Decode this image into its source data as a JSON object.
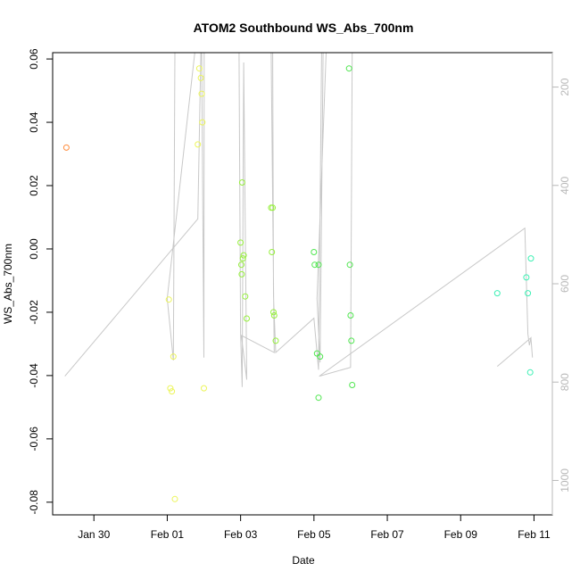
{
  "chart_data": {
    "type": "scatter",
    "title": "ATOM2 Southbound WS_Abs_700nm",
    "xlabel": "Date",
    "ylabel": "WS_Abs_700nm",
    "x_tick_labels": [
      "Jan 30",
      "Feb 01",
      "Feb 03",
      "Feb 05",
      "Feb 07",
      "Feb 09",
      "Feb 11"
    ],
    "x_tick_dates": [
      "2025-01-30",
      "2025-02-01",
      "2025-02-03",
      "2025-02-05",
      "2025-02-07",
      "2025-02-09",
      "2025-02-11"
    ],
    "xlim": [
      "2025-01-28T21:00",
      "2025-02-11T12:00"
    ],
    "y_tick_labels": [
      "-0.08",
      "-0.06",
      "-0.04",
      "-0.02",
      "0.00",
      "0.02",
      "0.04",
      "0.06"
    ],
    "ylim": [
      -0.084,
      0.062
    ],
    "y2_tick_labels": [
      "200",
      "400",
      "600",
      "800",
      "1000"
    ],
    "y2lim": [
      1070,
      130
    ],
    "grid": false,
    "colors": {
      "track": "#c8c8c8",
      "right_axis": "#b8b8b8",
      "axis": "#000000"
    },
    "series": [
      {
        "color": "#ff8c3c",
        "points": [
          [
            "2025-01-29T06:00",
            0.032
          ]
        ]
      },
      {
        "color": "#ecf55a",
        "points": [
          [
            "2025-02-01T01:00",
            -0.016
          ],
          [
            "2025-02-01T02:00",
            -0.044
          ],
          [
            "2025-02-01T03:00",
            -0.045
          ],
          [
            "2025-02-01T04:00",
            -0.034
          ],
          [
            "2025-02-01T05:00",
            -0.079
          ],
          [
            "2025-02-01T20:00",
            0.033
          ],
          [
            "2025-02-01T21:00",
            0.057
          ],
          [
            "2025-02-01T22:00",
            0.054
          ],
          [
            "2025-02-01T22:30",
            0.049
          ],
          [
            "2025-02-01T23:00",
            0.04
          ],
          [
            "2025-02-02T00:00",
            -0.044
          ]
        ]
      },
      {
        "color": "#96f03c",
        "points": [
          [
            "2025-02-03T00:00",
            0.002
          ],
          [
            "2025-02-03T01:00",
            0.021
          ],
          [
            "2025-02-03T02:00",
            -0.002
          ],
          [
            "2025-02-03T01:30",
            -0.003
          ],
          [
            "2025-02-03T00:30",
            -0.005
          ],
          [
            "2025-02-03T00:45",
            -0.008
          ],
          [
            "2025-02-03T03:00",
            -0.015
          ],
          [
            "2025-02-03T04:00",
            -0.022
          ],
          [
            "2025-02-03T20:00",
            0.013
          ],
          [
            "2025-02-03T21:00",
            0.013
          ],
          [
            "2025-02-03T20:30",
            -0.001
          ],
          [
            "2025-02-03T21:30",
            -0.02
          ],
          [
            "2025-02-03T22:00",
            -0.021
          ],
          [
            "2025-02-03T23:00",
            -0.029
          ]
        ]
      },
      {
        "color": "#50e650",
        "points": [
          [
            "2025-02-05T00:00",
            -0.001
          ],
          [
            "2025-02-05T00:30",
            -0.005
          ],
          [
            "2025-02-05T03:00",
            -0.005
          ],
          [
            "2025-02-05T02:00",
            -0.033
          ],
          [
            "2025-02-05T04:00",
            -0.034
          ],
          [
            "2025-02-05T03:00",
            -0.047
          ],
          [
            "2025-02-05T23:00",
            0.057
          ],
          [
            "2025-02-05T23:30",
            -0.005
          ],
          [
            "2025-02-06T00:00",
            -0.021
          ],
          [
            "2025-02-06T00:30",
            -0.029
          ],
          [
            "2025-02-06T01:00",
            -0.043
          ]
        ]
      },
      {
        "color": "#3cf0b4",
        "points": [
          [
            "2025-02-10T00:00",
            -0.014
          ],
          [
            "2025-02-10T19:00",
            -0.009
          ],
          [
            "2025-02-10T20:00",
            -0.014
          ],
          [
            "2025-02-10T22:00",
            -0.003
          ],
          [
            "2025-02-10T21:30",
            -0.039
          ]
        ]
      }
    ],
    "track": {
      "axis": "right",
      "points": [
        [
          "2025-01-29T05:00",
          788
        ],
        [
          "2025-02-01T20:00",
          468
        ],
        [
          "2025-02-01T22:00",
          130
        ],
        [
          "2025-02-01T22:30",
          130
        ],
        [
          "2025-02-02T00:00",
          750
        ],
        [
          "2025-02-02T00:10",
          130
        ],
        [
          "2025-02-01T18:00",
          130
        ],
        [
          "2025-02-01T00:00",
          630
        ],
        [
          "2025-02-01T04:00",
          756
        ],
        [
          "2025-02-01T05:00",
          130
        ],
        [
          "2025-02-02T23:00",
          130
        ],
        [
          "2025-02-03T00:00",
          700
        ],
        [
          "2025-02-03T01:00",
          810
        ],
        [
          "2025-02-03T02:00",
          150
        ],
        [
          "2025-02-03T04:00",
          795
        ],
        [
          "2025-02-03T00:30",
          705
        ],
        [
          "2025-02-03T22:00",
          740
        ],
        [
          "2025-02-03T20:00",
          130
        ],
        [
          "2025-02-03T21:00",
          130
        ],
        [
          "2025-02-03T21:30",
          625
        ],
        [
          "2025-02-03T23:00",
          740
        ],
        [
          "2025-02-05T00:00",
          670
        ],
        [
          "2025-02-05T03:00",
          775
        ],
        [
          "2025-02-05T05:00",
          130
        ],
        [
          "2025-02-05T06:00",
          130
        ],
        [
          "2025-02-05T04:00",
          760
        ],
        [
          "2025-02-05T02:00",
          630
        ],
        [
          "2025-02-05T08:00",
          130
        ],
        [
          "2025-02-05T22:00",
          130
        ],
        [
          "2025-02-06T01:00",
          130
        ],
        [
          "2025-02-06T00:00",
          770
        ],
        [
          "2025-02-05T03:30",
          788
        ],
        [
          "2025-02-10T18:00",
          487
        ],
        [
          "2025-02-10T20:00",
          702
        ],
        [
          "2025-02-10T21:00",
          725
        ],
        [
          "2025-02-10T22:00",
          710
        ],
        [
          "2025-02-10T00:00",
          768
        ],
        [
          "2025-02-10T22:00",
          710
        ],
        [
          "2025-02-10T23:00",
          750
        ]
      ]
    }
  }
}
